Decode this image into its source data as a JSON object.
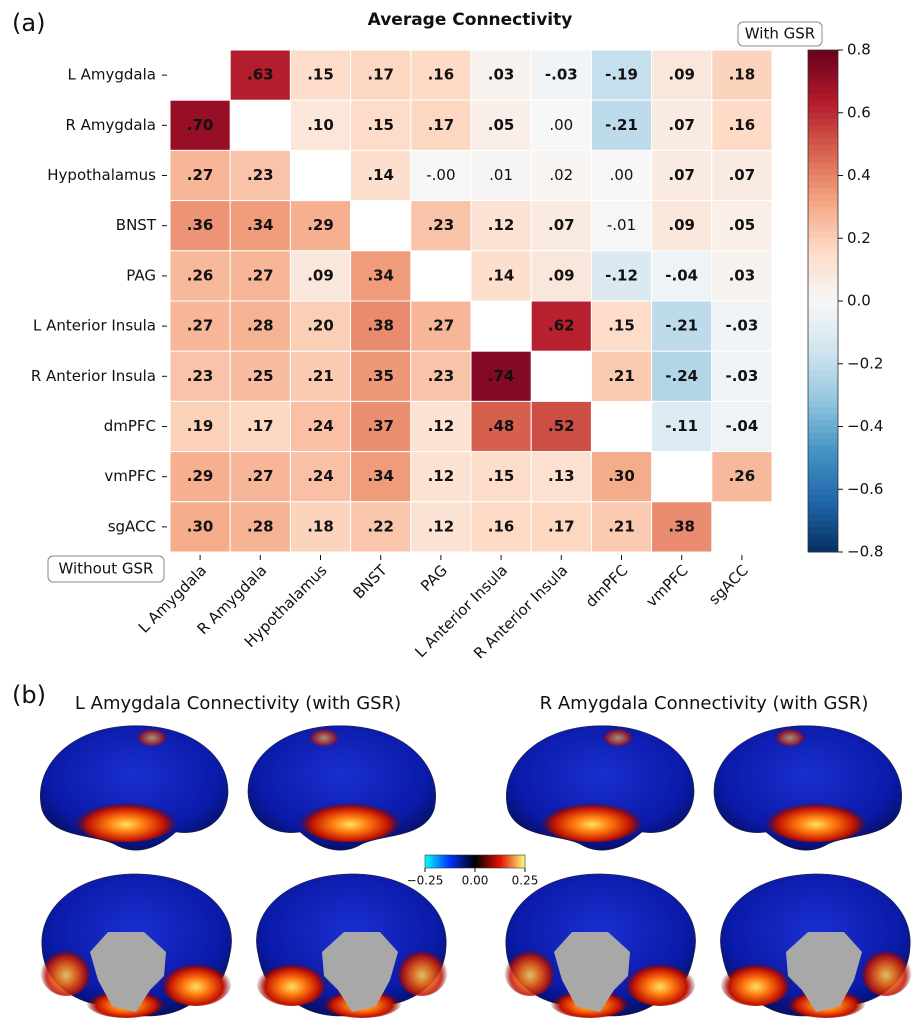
{
  "panels": [
    "(a)",
    "(b)"
  ],
  "chart_data": [
    {
      "type": "heatmap",
      "title": "Average Connectivity",
      "annotations": [
        "With GSR",
        "Without GSR"
      ],
      "rows": [
        "L Amygdala",
        "R Amygdala",
        "Hypothalamus",
        "BNST",
        "PAG",
        "L Anterior Insula",
        "R Anterior Insula",
        "dmPFC",
        "vmPFC",
        "sgACC"
      ],
      "columns": [
        "L Amygdala",
        "R Amygdala",
        "Hypothalamus",
        "BNST",
        "PAG",
        "L Anterior Insula",
        "R Anterior Insula",
        "dmPFC",
        "vmPFC",
        "sgACC"
      ],
      "values": [
        [
          null,
          0.63,
          0.15,
          0.17,
          0.16,
          0.03,
          -0.03,
          -0.19,
          0.09,
          0.18
        ],
        [
          0.7,
          null,
          0.1,
          0.15,
          0.17,
          0.05,
          0.0,
          -0.21,
          0.07,
          0.16
        ],
        [
          0.27,
          0.23,
          null,
          0.14,
          0,
          0.01,
          0.02,
          0.0,
          0.07,
          0.07
        ],
        [
          0.36,
          0.34,
          0.29,
          null,
          0.23,
          0.12,
          0.07,
          -0.01,
          0.09,
          0.05
        ],
        [
          0.26,
          0.27,
          0.09,
          0.34,
          null,
          0.14,
          0.09,
          -0.12,
          -0.04,
          0.03
        ],
        [
          0.27,
          0.28,
          0.2,
          0.38,
          0.27,
          null,
          0.62,
          0.15,
          -0.21,
          -0.03
        ],
        [
          0.23,
          0.25,
          0.21,
          0.35,
          0.23,
          0.74,
          null,
          0.21,
          -0.24,
          -0.03
        ],
        [
          0.19,
          0.17,
          0.24,
          0.37,
          0.12,
          0.48,
          0.52,
          null,
          -0.11,
          -0.04
        ],
        [
          0.29,
          0.27,
          0.24,
          0.34,
          0.12,
          0.15,
          0.13,
          0.3,
          null,
          0.26
        ],
        [
          0.3,
          0.28,
          0.18,
          0.22,
          0.12,
          0.16,
          0.17,
          0.21,
          0.38,
          null
        ]
      ],
      "value_labels": [
        [
          null,
          ".63",
          ".15",
          ".17",
          ".16",
          ".03",
          "-.03",
          "-.19",
          ".09",
          ".18"
        ],
        [
          ".70",
          null,
          ".10",
          ".15",
          ".17",
          ".05",
          ".00",
          "-.21",
          ".07",
          ".16"
        ],
        [
          ".27",
          ".23",
          null,
          ".14",
          "-.00",
          ".01",
          ".02",
          ".00",
          ".07",
          ".07"
        ],
        [
          ".36",
          ".34",
          ".29",
          null,
          ".23",
          ".12",
          ".07",
          "-.01",
          ".09",
          ".05"
        ],
        [
          ".26",
          ".27",
          ".09",
          ".34",
          null,
          ".14",
          ".09",
          "-.12",
          "-.04",
          ".03"
        ],
        [
          ".27",
          ".28",
          ".20",
          ".38",
          ".27",
          null,
          ".62",
          ".15",
          "-.21",
          "-.03"
        ],
        [
          ".23",
          ".25",
          ".21",
          ".35",
          ".23",
          ".74",
          null,
          ".21",
          "-.24",
          "-.03"
        ],
        [
          ".19",
          ".17",
          ".24",
          ".37",
          ".12",
          ".48",
          ".52",
          null,
          "-.11",
          "-.04"
        ],
        [
          ".29",
          ".27",
          ".24",
          ".34",
          ".12",
          ".15",
          ".13",
          ".30",
          null,
          ".26"
        ],
        [
          ".30",
          ".28",
          ".18",
          ".22",
          ".12",
          ".16",
          ".17",
          ".21",
          ".38",
          null
        ]
      ],
      "bold": [
        [
          null,
          true,
          true,
          true,
          true,
          true,
          true,
          true,
          true,
          true
        ],
        [
          true,
          null,
          true,
          true,
          true,
          true,
          false,
          true,
          true,
          true
        ],
        [
          true,
          true,
          null,
          true,
          false,
          false,
          false,
          false,
          true,
          true
        ],
        [
          true,
          true,
          true,
          null,
          true,
          true,
          true,
          false,
          true,
          true
        ],
        [
          true,
          true,
          true,
          true,
          null,
          true,
          true,
          true,
          true,
          true
        ],
        [
          true,
          true,
          true,
          true,
          true,
          null,
          true,
          true,
          true,
          true
        ],
        [
          true,
          true,
          true,
          true,
          true,
          true,
          null,
          true,
          true,
          true
        ],
        [
          true,
          true,
          true,
          true,
          true,
          true,
          true,
          null,
          true,
          true
        ],
        [
          true,
          true,
          true,
          true,
          true,
          true,
          true,
          true,
          null,
          true
        ],
        [
          true,
          true,
          true,
          true,
          true,
          true,
          true,
          true,
          true,
          null
        ]
      ],
      "colormap": "RdBu_r",
      "clim": [
        -0.8,
        0.8
      ],
      "cticks": [
        {
          "value": -0.8,
          "label": "−0.8"
        },
        {
          "value": -0.6,
          "label": "−0.6"
        },
        {
          "value": -0.4,
          "label": "−0.4"
        },
        {
          "value": -0.2,
          "label": "−0.2"
        },
        {
          "value": 0,
          "label": "0.0"
        },
        0.2,
        0.4,
        0.6,
        0.8
      ]
    },
    {
      "type": "brain-maps",
      "titles": [
        "L Amygdala Connectivity (with GSR)",
        "R Amygdala Connectivity (with GSR)"
      ],
      "clim": [
        -0.25,
        0.25
      ],
      "cticks": [
        {
          "value": -0.25,
          "label": "−0.25"
        },
        {
          "value": 0,
          "label": "0.00"
        },
        0.25
      ]
    }
  ]
}
